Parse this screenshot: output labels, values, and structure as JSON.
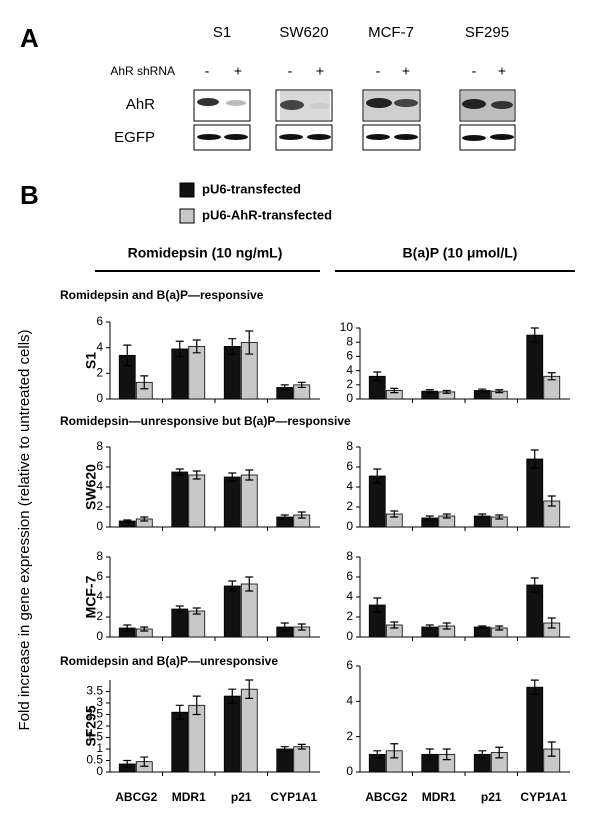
{
  "panel_a": {
    "label": "A",
    "shrna_label": "AhR shRNA",
    "cell_lines": [
      {
        "name": "S1",
        "lanes": [
          "-",
          "+"
        ]
      },
      {
        "name": "SW620",
        "lanes": [
          "-",
          "+"
        ]
      },
      {
        "name": "MCF-7",
        "lanes": [
          "-",
          "+"
        ]
      },
      {
        "name": "SF295",
        "lanes": [
          "-",
          "+"
        ]
      }
    ],
    "rows": [
      "AhR",
      "EGFP"
    ]
  },
  "panel_b": {
    "label": "B",
    "headers": [
      "Romidepsin (10 ng/mL)",
      "B(a)P (10 μmol/L)"
    ],
    "sections": [
      "Romidepsin and B(a)P—responsive",
      "Romidepsin—unresponsive but B(a)P—responsive",
      "Romidepsin and B(a)P—unresponsive"
    ],
    "ylabel": "Fold increase in gene expression (relative to untreated cells)",
    "categories": [
      "ABCG2",
      "MDR1",
      "p21",
      "CYP1A1"
    ]
  },
  "chart_data": [
    {
      "type": "bar",
      "ylabel": "S1",
      "ylim": [
        0,
        6
      ],
      "yticks": [
        0,
        2,
        4,
        6
      ],
      "series": [
        {
          "name": "pU6-transfected",
          "color": "#111111",
          "values": [
            3.4,
            3.9,
            4.1,
            0.9
          ],
          "errors": [
            0.8,
            0.6,
            0.6,
            0.2
          ]
        },
        {
          "name": "pU6-AhR-transfected",
          "color": "#c8c8c8",
          "values": [
            1.3,
            4.1,
            4.4,
            1.1
          ],
          "errors": [
            0.5,
            0.5,
            0.9,
            0.2
          ]
        }
      ]
    },
    {
      "type": "bar",
      "ylim": [
        0,
        10
      ],
      "yticks": [
        0,
        2,
        4,
        6,
        8,
        10
      ],
      "series": [
        {
          "color": "#111111",
          "values": [
            3.2,
            1.1,
            1.2,
            9.0
          ],
          "errors": [
            0.6,
            0.2,
            0.2,
            1.0
          ]
        },
        {
          "color": "#c8c8c8",
          "values": [
            1.2,
            1.0,
            1.1,
            3.2
          ],
          "errors": [
            0.3,
            0.2,
            0.2,
            0.5
          ]
        }
      ]
    },
    {
      "type": "bar",
      "ylabel": "SW620",
      "ylim": [
        0,
        8
      ],
      "yticks": [
        0,
        2,
        4,
        6,
        8
      ],
      "series": [
        {
          "color": "#111111",
          "values": [
            0.6,
            5.5,
            5.0,
            1.0
          ],
          "errors": [
            0.1,
            0.3,
            0.4,
            0.2
          ]
        },
        {
          "color": "#c8c8c8",
          "values": [
            0.8,
            5.2,
            5.2,
            1.2
          ],
          "errors": [
            0.2,
            0.4,
            0.5,
            0.3
          ]
        }
      ]
    },
    {
      "type": "bar",
      "ylim": [
        0,
        8
      ],
      "yticks": [
        0,
        2,
        4,
        6,
        8
      ],
      "series": [
        {
          "color": "#111111",
          "values": [
            5.1,
            0.9,
            1.1,
            6.8
          ],
          "errors": [
            0.7,
            0.2,
            0.2,
            0.9
          ]
        },
        {
          "color": "#c8c8c8",
          "values": [
            1.3,
            1.1,
            1.0,
            2.6
          ],
          "errors": [
            0.3,
            0.2,
            0.2,
            0.5
          ]
        }
      ]
    },
    {
      "type": "bar",
      "ylabel": "MCF-7",
      "ylim": [
        0,
        8
      ],
      "yticks": [
        0,
        2,
        4,
        6,
        8
      ],
      "series": [
        {
          "color": "#111111",
          "values": [
            0.9,
            2.8,
            5.1,
            1.0
          ],
          "errors": [
            0.3,
            0.3,
            0.5,
            0.4
          ]
        },
        {
          "color": "#c8c8c8",
          "values": [
            0.8,
            2.6,
            5.3,
            1.0
          ],
          "errors": [
            0.2,
            0.3,
            0.7,
            0.3
          ]
        }
      ]
    },
    {
      "type": "bar",
      "ylim": [
        0,
        8
      ],
      "yticks": [
        0,
        2,
        4,
        6,
        8
      ],
      "series": [
        {
          "color": "#111111",
          "values": [
            3.2,
            1.0,
            1.0,
            5.2
          ],
          "errors": [
            0.7,
            0.2,
            0.1,
            0.7
          ]
        },
        {
          "color": "#c8c8c8",
          "values": [
            1.2,
            1.1,
            0.9,
            1.4
          ],
          "errors": [
            0.3,
            0.3,
            0.2,
            0.5
          ]
        }
      ]
    },
    {
      "type": "bar",
      "ylabel": "SF295",
      "ylim": [
        0,
        4
      ],
      "yticks": [
        0,
        0.5,
        1,
        1.5,
        2,
        2.5,
        3,
        3.5
      ],
      "series": [
        {
          "color": "#111111",
          "values": [
            0.35,
            2.6,
            3.3,
            1.0
          ],
          "errors": [
            0.15,
            0.3,
            0.3,
            0.1
          ]
        },
        {
          "color": "#c8c8c8",
          "values": [
            0.45,
            2.9,
            3.6,
            1.1
          ],
          "errors": [
            0.2,
            0.4,
            0.4,
            0.1
          ]
        }
      ]
    },
    {
      "type": "bar",
      "ylim": [
        0,
        6
      ],
      "yticks": [
        0,
        2,
        4,
        6
      ],
      "series": [
        {
          "color": "#111111",
          "values": [
            1.0,
            1.0,
            1.0,
            4.8
          ],
          "errors": [
            0.2,
            0.3,
            0.2,
            0.4
          ]
        },
        {
          "color": "#c8c8c8",
          "values": [
            1.2,
            1.0,
            1.1,
            1.3
          ],
          "errors": [
            0.4,
            0.3,
            0.3,
            0.4
          ]
        }
      ]
    }
  ]
}
